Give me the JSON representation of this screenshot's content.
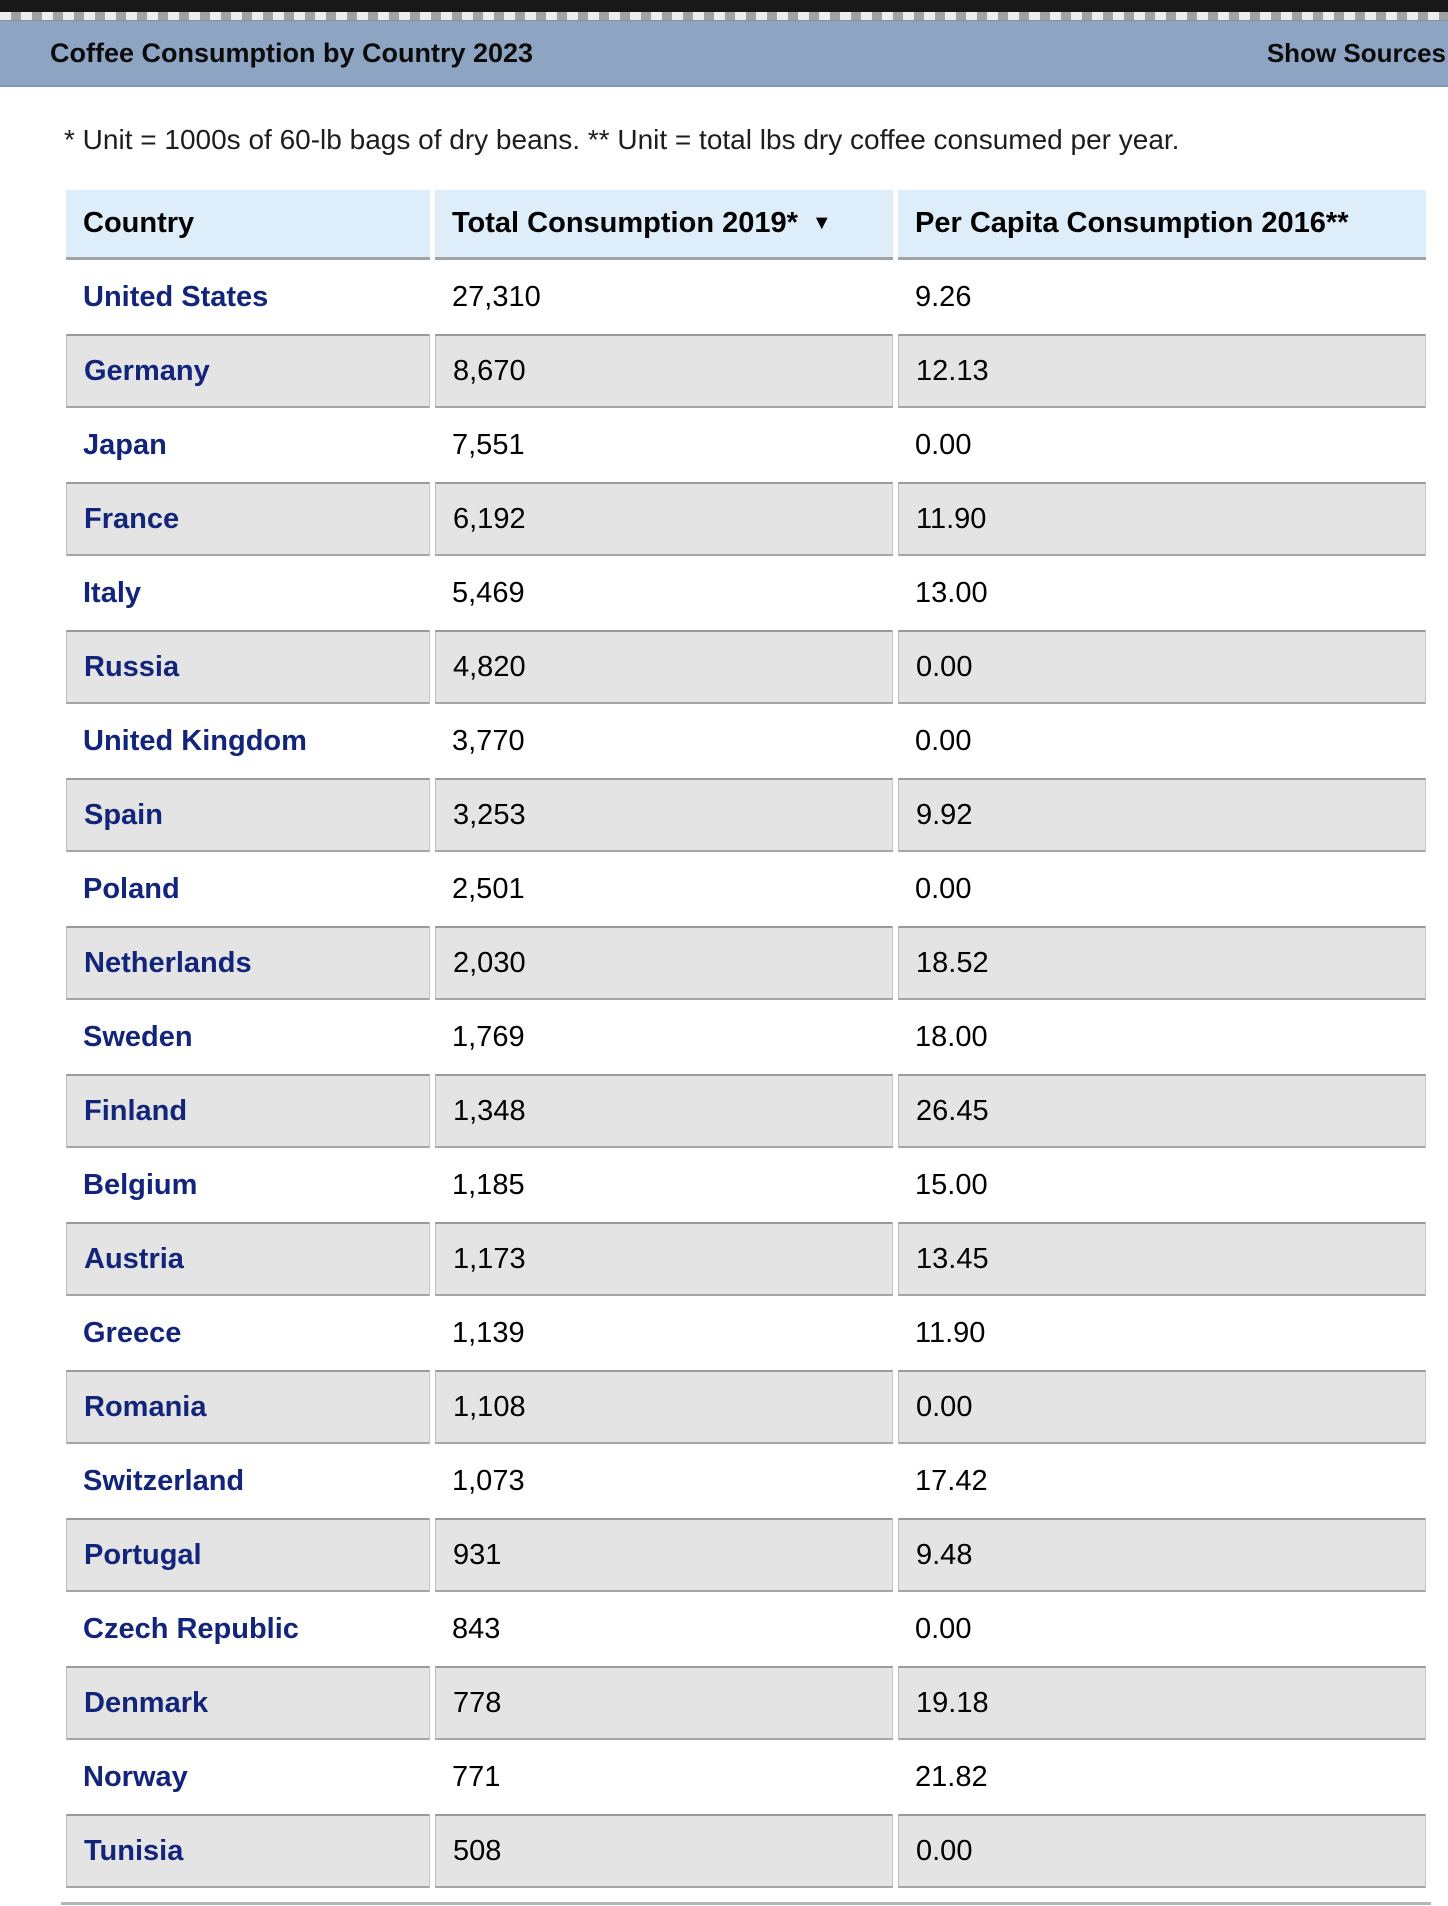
{
  "header": {
    "title": "Coffee Consumption by Country 2023",
    "show_sources_label": "Show Sources"
  },
  "note": "* Unit = 1000s of 60-lb bags of dry beans. ** Unit = total lbs dry coffee consumed per year.",
  "table": {
    "columns": [
      {
        "label": "Country"
      },
      {
        "label": "Total Consumption 2019*",
        "sorted": "descending"
      },
      {
        "label": "Per Capita Consumption 2016**"
      }
    ],
    "sort_icon": "▼",
    "rows": [
      {
        "country": "United States",
        "total_consumption_2019": "27,310",
        "per_capita_2016": "9.26"
      },
      {
        "country": "Germany",
        "total_consumption_2019": "8,670",
        "per_capita_2016": "12.13"
      },
      {
        "country": "Japan",
        "total_consumption_2019": "7,551",
        "per_capita_2016": "0.00"
      },
      {
        "country": "France",
        "total_consumption_2019": "6,192",
        "per_capita_2016": "11.90"
      },
      {
        "country": "Italy",
        "total_consumption_2019": "5,469",
        "per_capita_2016": "13.00"
      },
      {
        "country": "Russia",
        "total_consumption_2019": "4,820",
        "per_capita_2016": "0.00"
      },
      {
        "country": "United Kingdom",
        "total_consumption_2019": "3,770",
        "per_capita_2016": "0.00"
      },
      {
        "country": "Spain",
        "total_consumption_2019": "3,253",
        "per_capita_2016": "9.92"
      },
      {
        "country": "Poland",
        "total_consumption_2019": "2,501",
        "per_capita_2016": "0.00"
      },
      {
        "country": "Netherlands",
        "total_consumption_2019": "2,030",
        "per_capita_2016": "18.52"
      },
      {
        "country": "Sweden",
        "total_consumption_2019": "1,769",
        "per_capita_2016": "18.00"
      },
      {
        "country": "Finland",
        "total_consumption_2019": "1,348",
        "per_capita_2016": "26.45"
      },
      {
        "country": "Belgium",
        "total_consumption_2019": "1,185",
        "per_capita_2016": "15.00"
      },
      {
        "country": "Austria",
        "total_consumption_2019": "1,173",
        "per_capita_2016": "13.45"
      },
      {
        "country": "Greece",
        "total_consumption_2019": "1,139",
        "per_capita_2016": "11.90"
      },
      {
        "country": "Romania",
        "total_consumption_2019": "1,108",
        "per_capita_2016": "0.00"
      },
      {
        "country": "Switzerland",
        "total_consumption_2019": "1,073",
        "per_capita_2016": "17.42"
      },
      {
        "country": "Portugal",
        "total_consumption_2019": "931",
        "per_capita_2016": "9.48"
      },
      {
        "country": "Czech Republic",
        "total_consumption_2019": "843",
        "per_capita_2016": "0.00"
      },
      {
        "country": "Denmark",
        "total_consumption_2019": "778",
        "per_capita_2016": "19.18"
      },
      {
        "country": "Norway",
        "total_consumption_2019": "771",
        "per_capita_2016": "21.82"
      },
      {
        "country": "Tunisia",
        "total_consumption_2019": "508",
        "per_capita_2016": "0.00"
      }
    ]
  },
  "colors": {
    "title_bar_bg": "#8ea4c3",
    "table_header_bg": "#ddedf9",
    "stripe_row_bg": "#e4e4e4",
    "stripe_row_border": "#9e9e9e",
    "country_link": "#12257a",
    "top_strip": "#181818"
  }
}
